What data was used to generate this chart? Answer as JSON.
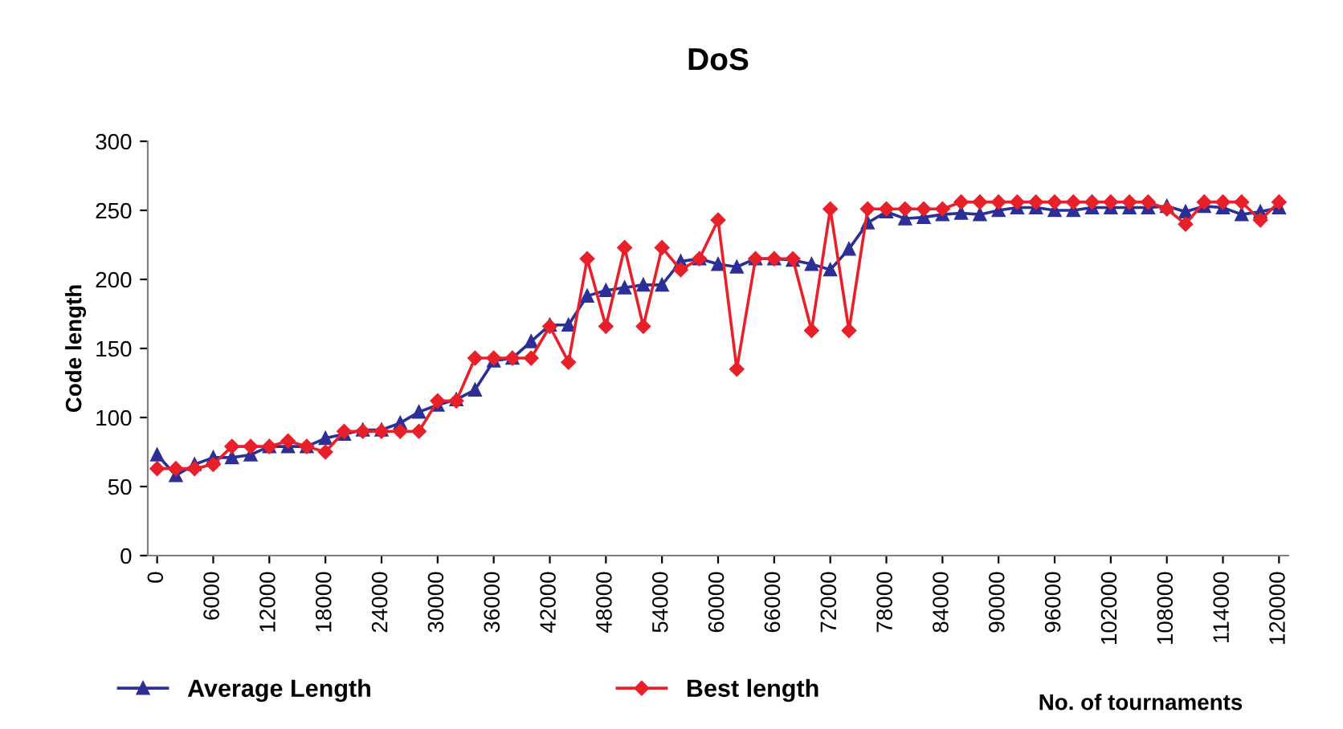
{
  "chart_data": {
    "type": "line",
    "title": "DoS",
    "xlabel": "No. of tournaments",
    "ylabel": "Code length",
    "x": [
      0,
      2000,
      4000,
      6000,
      8000,
      10000,
      12000,
      14000,
      16000,
      18000,
      20000,
      22000,
      24000,
      26000,
      28000,
      30000,
      32000,
      34000,
      36000,
      38000,
      40000,
      42000,
      44000,
      46000,
      48000,
      50000,
      52000,
      54000,
      56000,
      58000,
      60000,
      62000,
      64000,
      66000,
      68000,
      70000,
      72000,
      74000,
      76000,
      78000,
      80000,
      82000,
      84000,
      86000,
      88000,
      90000,
      92000,
      94000,
      96000,
      98000,
      100000,
      102000,
      104000,
      106000,
      108000,
      110000,
      112000,
      114000,
      116000,
      118000,
      120000
    ],
    "series": [
      {
        "name": "Average Length",
        "color": "#2b2f96",
        "marker": "triangle",
        "values": [
          73,
          58,
          66,
          71,
          71,
          73,
          79,
          79,
          79,
          85,
          88,
          91,
          91,
          96,
          104,
          109,
          113,
          120,
          141,
          143,
          155,
          167,
          167,
          188,
          192,
          194,
          196,
          196,
          213,
          215,
          211,
          209,
          215,
          215,
          214,
          211,
          207,
          222,
          241,
          249,
          244,
          245,
          247,
          248,
          247,
          250,
          252,
          252,
          250,
          250,
          252,
          252,
          252,
          252,
          253,
          249,
          253,
          252,
          247,
          249,
          252
        ]
      },
      {
        "name": "Best length",
        "color": "#e8202a",
        "marker": "diamond",
        "values": [
          63,
          63,
          63,
          66,
          79,
          79,
          79,
          83,
          79,
          75,
          90,
          90,
          90,
          90,
          90,
          112,
          112,
          143,
          143,
          143,
          143,
          166,
          140,
          215,
          166,
          223,
          166,
          223,
          207,
          215,
          243,
          135,
          215,
          215,
          215,
          163,
          251,
          163,
          251,
          251,
          251,
          251,
          251,
          256,
          256,
          256,
          256,
          256,
          256,
          256,
          256,
          256,
          256,
          256,
          251,
          240,
          256,
          256,
          256,
          243,
          256
        ]
      }
    ],
    "xlim": [
      -1000,
      121000
    ],
    "xticks": [
      0,
      6000,
      12000,
      18000,
      24000,
      30000,
      36000,
      42000,
      48000,
      54000,
      60000,
      66000,
      72000,
      78000,
      84000,
      90000,
      96000,
      102000,
      108000,
      114000,
      120000
    ],
    "ylim": [
      0,
      300
    ],
    "yticks": [
      0,
      50,
      100,
      150,
      200,
      250,
      300
    ],
    "grid": false,
    "legend": "bottom",
    "line_style": "solid"
  }
}
